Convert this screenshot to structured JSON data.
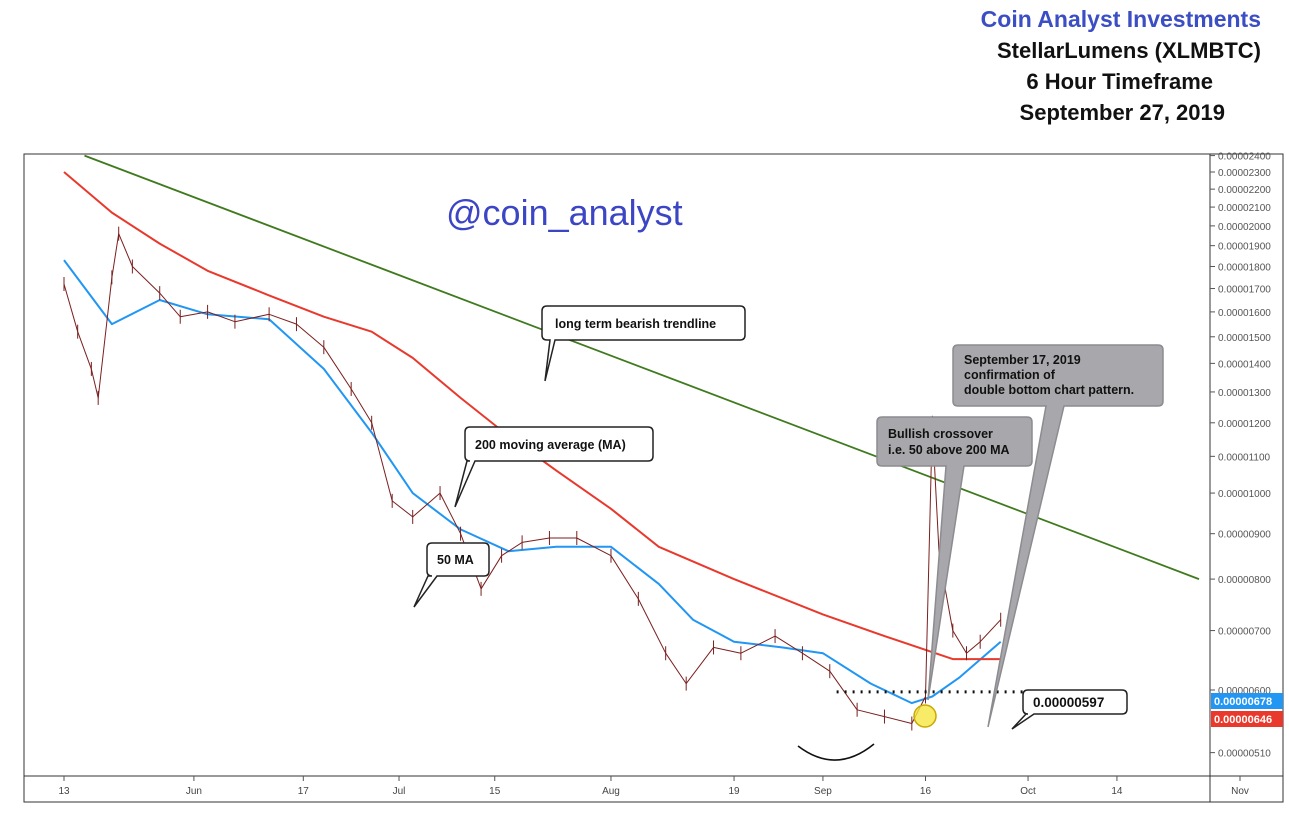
{
  "header": {
    "brand": "Coin Analyst Investments",
    "pair": "StellarLumens (XLMBTC)",
    "timeframe": "6 Hour Timeframe",
    "date": "September 27, 2019"
  },
  "watermark": "@coin_analyst",
  "annotations": {
    "trendline": "long term bearish trendline",
    "ma200": "200 moving average (MA)",
    "ma50": "50 MA",
    "crossover_line1": "Bullish crossover",
    "crossover_line2": "i.e. 50 above 200 MA",
    "double_bottom_line1": "September 17, 2019",
    "double_bottom_line2": "confirmation of",
    "double_bottom_line3": "double bottom chart pattern.",
    "support_level": "0.00000597"
  },
  "colors": {
    "ma50": "#2196f3",
    "ma200": "#e8392c",
    "trendline": "#3f7a1e",
    "candles": "#7a1f1f",
    "brand": "#3b4ec4",
    "callout_gray": "#a8a8ac",
    "highlight": "#f5e642"
  },
  "chart_data": {
    "type": "line",
    "title": "StellarLumens (XLMBTC)",
    "y_scale": "log",
    "ylim": [
      4.8e-06,
      2.41e-05
    ],
    "y_ticks": [
      "0.00002400",
      "0.00002300",
      "0.00002200",
      "0.00002100",
      "0.00002000",
      "0.00001900",
      "0.00001800",
      "0.00001700",
      "0.00001600",
      "0.00001500",
      "0.00001400",
      "0.00001300",
      "0.00001200",
      "0.00001100",
      "0.00001000",
      "0.00000900",
      "0.00000800",
      "0.00000700",
      "0.00000600",
      "0.00000510"
    ],
    "y_tick_values": [
      2.4e-05,
      2.3e-05,
      2.2e-05,
      2.1e-05,
      2e-05,
      1.9e-05,
      1.8e-05,
      1.7e-05,
      1.6e-05,
      1.5e-05,
      1.4e-05,
      1.3e-05,
      1.2e-05,
      1.1e-05,
      1e-05,
      9e-06,
      8e-06,
      7e-06,
      6e-06,
      5.1e-06
    ],
    "x_ticks": [
      "13",
      "Jun",
      "17",
      "Jul",
      "15",
      "Aug",
      "19",
      "Sep",
      "16",
      "Oct",
      "14",
      "Nov"
    ],
    "x_tick_dates": [
      "2019-05-13",
      "2019-06-01",
      "2019-06-17",
      "2019-07-01",
      "2019-07-15",
      "2019-08-01",
      "2019-08-19",
      "2019-09-01",
      "2019-09-16",
      "2019-10-01",
      "2019-10-14",
      "2019-11-01"
    ],
    "xlim": [
      "2019-05-13",
      "2019-11-01"
    ],
    "series": [
      {
        "name": "50 MA",
        "kind": "line",
        "last_label": "0.00000678",
        "points": [
          [
            "2019-05-13",
            1.83e-05
          ],
          [
            "2019-05-20",
            1.55e-05
          ],
          [
            "2019-05-27",
            1.65e-05
          ],
          [
            "2019-06-03",
            1.59e-05
          ],
          [
            "2019-06-12",
            1.57e-05
          ],
          [
            "2019-06-20",
            1.38e-05
          ],
          [
            "2019-06-27",
            1.17e-05
          ],
          [
            "2019-07-03",
            1e-05
          ],
          [
            "2019-07-10",
            9.1e-06
          ],
          [
            "2019-07-17",
            8.6e-06
          ],
          [
            "2019-07-24",
            8.7e-06
          ],
          [
            "2019-08-01",
            8.7e-06
          ],
          [
            "2019-08-08",
            7.9e-06
          ],
          [
            "2019-08-13",
            7.2e-06
          ],
          [
            "2019-08-19",
            6.8e-06
          ],
          [
            "2019-08-26",
            6.7e-06
          ],
          [
            "2019-09-01",
            6.6e-06
          ],
          [
            "2019-09-08",
            6.1e-06
          ],
          [
            "2019-09-14",
            5.8e-06
          ],
          [
            "2019-09-17",
            5.9e-06
          ],
          [
            "2019-09-21",
            6.2e-06
          ],
          [
            "2019-09-27",
            6.8e-06
          ]
        ]
      },
      {
        "name": "200 MA",
        "kind": "line",
        "last_label": "0.00000646",
        "points": [
          [
            "2019-05-13",
            2.3e-05
          ],
          [
            "2019-05-20",
            2.07e-05
          ],
          [
            "2019-05-27",
            1.91e-05
          ],
          [
            "2019-06-03",
            1.78e-05
          ],
          [
            "2019-06-12",
            1.67e-05
          ],
          [
            "2019-06-20",
            1.58e-05
          ],
          [
            "2019-06-27",
            1.52e-05
          ],
          [
            "2019-07-03",
            1.42e-05
          ],
          [
            "2019-07-10",
            1.28e-05
          ],
          [
            "2019-07-17",
            1.16e-05
          ],
          [
            "2019-07-24",
            1.06e-05
          ],
          [
            "2019-08-01",
            9.6e-06
          ],
          [
            "2019-08-08",
            8.7e-06
          ],
          [
            "2019-08-19",
            8e-06
          ],
          [
            "2019-09-01",
            7.3e-06
          ],
          [
            "2019-09-10",
            6.9e-06
          ],
          [
            "2019-09-20",
            6.5e-06
          ],
          [
            "2019-09-27",
            6.5e-06
          ]
        ]
      },
      {
        "name": "long term bearish trendline",
        "kind": "line",
        "points": [
          [
            "2019-05-16",
            2.4e-05
          ],
          [
            "2019-10-26",
            8e-06
          ]
        ]
      },
      {
        "name": "Price",
        "kind": "line",
        "points": [
          [
            "2019-05-13",
            1.72e-05
          ],
          [
            "2019-05-15",
            1.52e-05
          ],
          [
            "2019-05-17",
            1.38e-05
          ],
          [
            "2019-05-18",
            1.28e-05
          ],
          [
            "2019-05-20",
            1.75e-05
          ],
          [
            "2019-05-21",
            1.96e-05
          ],
          [
            "2019-05-23",
            1.8e-05
          ],
          [
            "2019-05-27",
            1.68e-05
          ],
          [
            "2019-05-30",
            1.58e-05
          ],
          [
            "2019-06-03",
            1.6e-05
          ],
          [
            "2019-06-07",
            1.56e-05
          ],
          [
            "2019-06-12",
            1.59e-05
          ],
          [
            "2019-06-16",
            1.55e-05
          ],
          [
            "2019-06-20",
            1.46e-05
          ],
          [
            "2019-06-24",
            1.31e-05
          ],
          [
            "2019-06-27",
            1.2e-05
          ],
          [
            "2019-06-30",
            9.8e-06
          ],
          [
            "2019-07-03",
            9.4e-06
          ],
          [
            "2019-07-07",
            1e-05
          ],
          [
            "2019-07-10",
            9e-06
          ],
          [
            "2019-07-13",
            7.8e-06
          ],
          [
            "2019-07-16",
            8.5e-06
          ],
          [
            "2019-07-19",
            8.8e-06
          ],
          [
            "2019-07-23",
            8.9e-06
          ],
          [
            "2019-07-27",
            8.9e-06
          ],
          [
            "2019-08-01",
            8.5e-06
          ],
          [
            "2019-08-05",
            7.6e-06
          ],
          [
            "2019-08-09",
            6.6e-06
          ],
          [
            "2019-08-12",
            6.1e-06
          ],
          [
            "2019-08-16",
            6.7e-06
          ],
          [
            "2019-08-20",
            6.6e-06
          ],
          [
            "2019-08-25",
            6.9e-06
          ],
          [
            "2019-08-29",
            6.6e-06
          ],
          [
            "2019-09-02",
            6.3e-06
          ],
          [
            "2019-09-06",
            5.7e-06
          ],
          [
            "2019-09-10",
            5.6e-06
          ],
          [
            "2019-09-14",
            5.5e-06
          ],
          [
            "2019-09-16",
            5.9e-06
          ],
          [
            "2019-09-17",
            1.2e-05
          ],
          [
            "2019-09-18",
            8.5e-06
          ],
          [
            "2019-09-20",
            7e-06
          ],
          [
            "2019-09-22",
            6.6e-06
          ],
          [
            "2019-09-24",
            6.8e-06
          ],
          [
            "2019-09-27",
            7.2e-06
          ]
        ]
      },
      {
        "name": "0.00000597",
        "kind": "hline",
        "value": 5.97e-06,
        "from": "2019-09-03",
        "to": "2019-10-06"
      }
    ]
  }
}
